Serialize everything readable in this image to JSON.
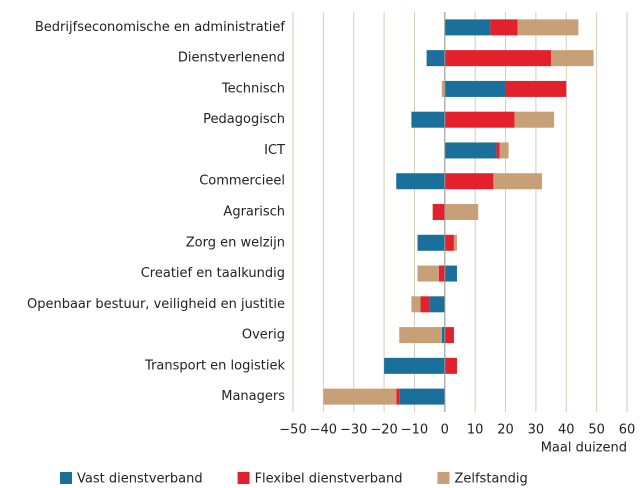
{
  "chart_data": {
    "type": "bar",
    "orientation": "horizontal",
    "stacked": true,
    "categories": [
      "Bedrijfseconomische en administratief",
      "Dienstverlenend",
      "Technisch",
      "Pedagogisch",
      "ICT",
      "Commercieel",
      "Agrarisch",
      "Zorg en welzijn",
      "Creatief en taalkundig",
      "Openbaar bestuur, veiligheid  en justitie",
      "Overig",
      "Transport en logistiek",
      "Managers"
    ],
    "series": [
      {
        "name": "Vast dienstverband",
        "color": "#1b6f9b",
        "values": [
          15,
          -6,
          20,
          -11,
          17,
          -16,
          0,
          -9,
          4,
          -5,
          -1,
          -20,
          -15
        ]
      },
      {
        "name": "Flexibel dienstverband",
        "color": "#e3212d",
        "values": [
          9,
          35,
          20,
          23,
          1,
          16,
          -4,
          3,
          -2,
          -3,
          3,
          4,
          -1
        ]
      },
      {
        "name": "Zelfstandig",
        "color": "#c8a077",
        "values": [
          20,
          14,
          -1,
          13,
          3,
          16,
          11,
          1,
          -7,
          -3,
          -14,
          0,
          -24
        ]
      }
    ],
    "xlim": [
      -50,
      60
    ],
    "xticks": [
      {
        "value": -50,
        "label": "−50"
      },
      {
        "value": -40,
        "label": "−40"
      },
      {
        "value": -30,
        "label": "−30"
      },
      {
        "value": -20,
        "label": "−20"
      },
      {
        "value": -10,
        "label": "−10"
      },
      0,
      10,
      20,
      30,
      40,
      50,
      60
    ],
    "xlabel": "Maal duizend",
    "grid": true,
    "legend": "bottom"
  }
}
